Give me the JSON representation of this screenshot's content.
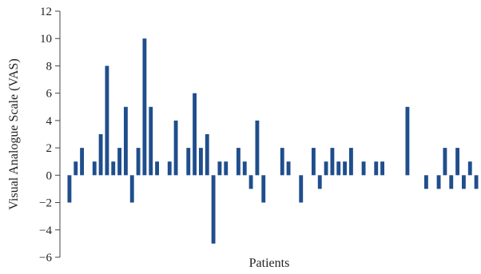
{
  "chart_data": {
    "type": "bar",
    "xlabel": "Patients",
    "ylabel": "Visual Analogue Scale (VAS)",
    "ylim": [
      -6,
      12
    ],
    "yticks": [
      -6,
      -4,
      -2,
      0,
      2,
      4,
      6,
      8,
      10,
      12
    ],
    "ytick_labels": [
      "−6",
      "−4",
      "−2",
      "0",
      "2",
      "4",
      "6",
      "8",
      "10",
      "12"
    ],
    "grid": false,
    "legend": "none",
    "bar_color": "#1f4e8c",
    "values": [
      -2,
      1,
      2,
      0,
      1,
      3,
      8,
      1,
      2,
      5,
      -2,
      2,
      10,
      5,
      1,
      0,
      1,
      4,
      0,
      2,
      6,
      2,
      3,
      -5,
      1,
      1,
      0,
      2,
      1,
      -1,
      4,
      -2,
      0,
      0,
      2,
      1,
      0,
      -2,
      0,
      2,
      -1,
      1,
      2,
      1,
      1,
      2,
      0,
      1,
      0,
      1,
      1,
      0,
      0,
      0,
      5,
      0,
      0,
      -1,
      0,
      -1,
      2,
      -1,
      2,
      -1,
      1,
      -1
    ]
  }
}
